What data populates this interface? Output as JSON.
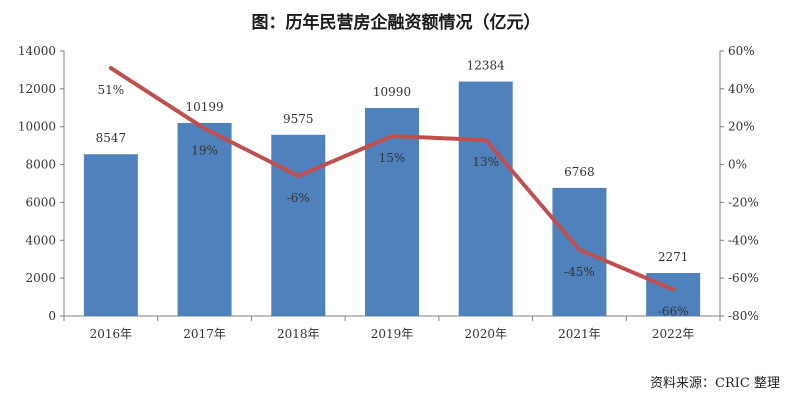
{
  "title": "图：历年民营房企融资额情况（亿元）",
  "source": "资料来源：CRIC 整理",
  "chart_data": {
    "type": "bar",
    "categories": [
      "2016年",
      "2017年",
      "2018年",
      "2019年",
      "2020年",
      "2021年",
      "2022年"
    ],
    "series": [
      {
        "type": "bar",
        "values": [
          8547,
          10199,
          9575,
          10990,
          12384,
          6768,
          2271
        ],
        "color": "#4f81bd",
        "axis": "left"
      },
      {
        "type": "line",
        "values": [
          51,
          19,
          -6,
          15,
          13,
          -45,
          -66
        ],
        "labels": [
          "51%",
          "19%",
          "-6%",
          "15%",
          "13%",
          "-45%",
          "-66%"
        ],
        "color": "#c0504d",
        "axis": "right"
      }
    ],
    "y_left": {
      "range": [
        0,
        14000
      ],
      "ticks": [
        "0",
        "2000",
        "4000",
        "6000",
        "8000",
        "10000",
        "12000",
        "14000"
      ]
    },
    "y_right": {
      "range": [
        -80,
        60
      ],
      "ticks": [
        "-80%",
        "-60%",
        "-40%",
        "-20%",
        "0%",
        "20%",
        "40%",
        "60%"
      ]
    },
    "grid": false,
    "legend": "none"
  }
}
